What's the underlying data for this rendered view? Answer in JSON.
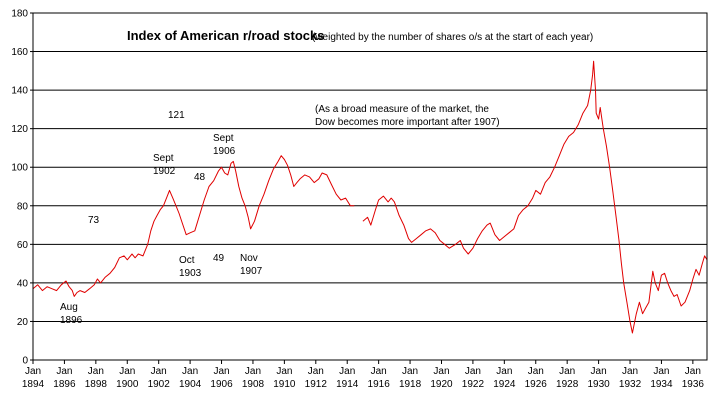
{
  "chart_data": {
    "type": "line",
    "title": "Index of American r/road stocks",
    "subtitle": "(weighted by the number of shares o/s at the start of each year)",
    "xlabel": "",
    "ylabel": "",
    "xlim": [
      1894.0,
      1936.9
    ],
    "ylim": [
      0,
      180
    ],
    "y_ticks": [
      0,
      20,
      40,
      60,
      80,
      100,
      120,
      140,
      160,
      180
    ],
    "x_ticks": [
      {
        "year": 1894,
        "label": [
          "Jan",
          "1894"
        ]
      },
      {
        "year": 1896,
        "label": [
          "Jan",
          "1896"
        ]
      },
      {
        "year": 1898,
        "label": [
          "Jan",
          "1898"
        ]
      },
      {
        "year": 1900,
        "label": [
          "Jan",
          "1900"
        ]
      },
      {
        "year": 1902,
        "label": [
          "Jan",
          "1902"
        ]
      },
      {
        "year": 1904,
        "label": [
          "Jan",
          "1904"
        ]
      },
      {
        "year": 1906,
        "label": [
          "Jan",
          "1906"
        ]
      },
      {
        "year": 1908,
        "label": [
          "Jan",
          "1908"
        ]
      },
      {
        "year": 1910,
        "label": [
          "Jan",
          "1910"
        ]
      },
      {
        "year": 1912,
        "label": [
          "Jan",
          "1912"
        ]
      },
      {
        "year": 1914,
        "label": [
          "Jan",
          "1914"
        ]
      },
      {
        "year": 1916,
        "label": [
          "Jan",
          "1916"
        ]
      },
      {
        "year": 1918,
        "label": [
          "Jan",
          "1918"
        ]
      },
      {
        "year": 1920,
        "label": [
          "Jan",
          "1920"
        ]
      },
      {
        "year": 1922,
        "label": [
          "Jan",
          "1922"
        ]
      },
      {
        "year": 1924,
        "label": [
          "Jan",
          "1924"
        ]
      },
      {
        "year": 1926,
        "label": [
          "Jan",
          "1926"
        ]
      },
      {
        "year": 1928,
        "label": [
          "Jan",
          "1928"
        ]
      },
      {
        "year": 1930,
        "label": [
          "Jan",
          "1930"
        ]
      },
      {
        "year": 1932,
        "label": [
          "Jan",
          "1932"
        ]
      },
      {
        "year": 1934,
        "label": [
          "Jan",
          "1934"
        ]
      },
      {
        "year": 1936,
        "label": [
          "Jan",
          "1936"
        ]
      }
    ],
    "grid": "horizontal",
    "series": [
      {
        "color": "#e00000",
        "segments": [
          [
            [
              1894.0,
              37
            ],
            [
              1894.3,
              39
            ],
            [
              1894.6,
              36
            ],
            [
              1894.9,
              38
            ],
            [
              1895.2,
              37
            ],
            [
              1895.5,
              36
            ],
            [
              1895.8,
              39
            ],
            [
              1896.1,
              41
            ],
            [
              1896.3,
              38
            ],
            [
              1896.5,
              36
            ],
            [
              1896.62,
              33
            ],
            [
              1896.8,
              35
            ],
            [
              1897.0,
              36
            ],
            [
              1897.3,
              35
            ],
            [
              1897.6,
              37
            ],
            [
              1897.9,
              39
            ],
            [
              1898.1,
              42
            ],
            [
              1898.3,
              40
            ],
            [
              1898.6,
              43
            ],
            [
              1898.9,
              45
            ],
            [
              1899.2,
              48
            ],
            [
              1899.5,
              53
            ],
            [
              1899.8,
              54
            ],
            [
              1900.0,
              52
            ],
            [
              1900.3,
              55
            ],
            [
              1900.5,
              53
            ],
            [
              1900.7,
              55
            ],
            [
              1901.0,
              54
            ],
            [
              1901.3,
              60
            ],
            [
              1901.5,
              67
            ],
            [
              1901.7,
              72
            ],
            [
              1901.9,
              75
            ],
            [
              1902.1,
              78
            ],
            [
              1902.3,
              80
            ],
            [
              1902.5,
              84
            ],
            [
              1902.69,
              88
            ],
            [
              1902.9,
              84
            ],
            [
              1903.1,
              80
            ],
            [
              1903.3,
              76
            ],
            [
              1903.5,
              71
            ],
            [
              1903.75,
              65
            ],
            [
              1904.0,
              66
            ],
            [
              1904.3,
              67
            ],
            [
              1904.6,
              75
            ],
            [
              1904.9,
              83
            ],
            [
              1905.2,
              90
            ],
            [
              1905.5,
              93
            ],
            [
              1905.8,
              98
            ],
            [
              1906.0,
              100
            ],
            [
              1906.2,
              97
            ],
            [
              1906.4,
              96
            ],
            [
              1906.6,
              102
            ],
            [
              1906.75,
              103
            ],
            [
              1906.9,
              98
            ],
            [
              1907.1,
              90
            ],
            [
              1907.3,
              84
            ],
            [
              1907.5,
              80
            ],
            [
              1907.7,
              74
            ],
            [
              1907.85,
              68
            ],
            [
              1908.1,
              72
            ],
            [
              1908.4,
              80
            ],
            [
              1908.7,
              86
            ],
            [
              1909.0,
              93
            ],
            [
              1909.3,
              99
            ],
            [
              1909.6,
              103
            ],
            [
              1909.8,
              106
            ],
            [
              1910.0,
              104
            ],
            [
              1910.2,
              101
            ],
            [
              1910.4,
              96
            ],
            [
              1910.6,
              90
            ],
            [
              1910.8,
              92
            ],
            [
              1911.0,
              94
            ],
            [
              1911.3,
              96
            ],
            [
              1911.6,
              95
            ],
            [
              1911.9,
              92
            ],
            [
              1912.2,
              94
            ],
            [
              1912.4,
              97
            ],
            [
              1912.7,
              96
            ],
            [
              1913.0,
              91
            ],
            [
              1913.3,
              86
            ],
            [
              1913.6,
              83
            ],
            [
              1913.9,
              84
            ],
            [
              1914.2,
              80
            ],
            [
              1914.45,
              80
            ]
          ],
          [
            [
              1915.0,
              72
            ],
            [
              1915.3,
              74
            ],
            [
              1915.5,
              70
            ],
            [
              1915.8,
              78
            ],
            [
              1916.0,
              83
            ],
            [
              1916.3,
              85
            ],
            [
              1916.6,
              82
            ],
            [
              1916.8,
              84
            ],
            [
              1917.0,
              82
            ],
            [
              1917.3,
              75
            ],
            [
              1917.6,
              70
            ],
            [
              1917.9,
              63
            ],
            [
              1918.1,
              61
            ],
            [
              1918.4,
              63
            ],
            [
              1918.7,
              65
            ],
            [
              1919.0,
              67
            ],
            [
              1919.3,
              68
            ],
            [
              1919.6,
              66
            ],
            [
              1919.9,
              62
            ],
            [
              1920.2,
              60
            ],
            [
              1920.5,
              58
            ],
            [
              1920.9,
              60
            ],
            [
              1921.2,
              62
            ],
            [
              1921.4,
              58
            ],
            [
              1921.7,
              55
            ],
            [
              1922.0,
              58
            ],
            [
              1922.3,
              63
            ],
            [
              1922.6,
              67
            ],
            [
              1922.9,
              70
            ],
            [
              1923.1,
              71
            ],
            [
              1923.4,
              65
            ],
            [
              1923.7,
              62
            ],
            [
              1924.0,
              64
            ],
            [
              1924.3,
              66
            ],
            [
              1924.6,
              68
            ],
            [
              1924.9,
              75
            ],
            [
              1925.2,
              78
            ],
            [
              1925.5,
              80
            ],
            [
              1925.8,
              84
            ],
            [
              1926.0,
              88
            ],
            [
              1926.3,
              86
            ],
            [
              1926.6,
              92
            ],
            [
              1926.9,
              95
            ],
            [
              1927.2,
              100
            ],
            [
              1927.5,
              106
            ],
            [
              1927.8,
              112
            ],
            [
              1928.1,
              116
            ],
            [
              1928.4,
              118
            ],
            [
              1928.7,
              122
            ],
            [
              1929.0,
              128
            ],
            [
              1929.3,
              132
            ],
            [
              1929.5,
              140
            ],
            [
              1929.62,
              148
            ],
            [
              1929.68,
              155
            ],
            [
              1929.8,
              140
            ],
            [
              1929.85,
              128
            ],
            [
              1930.0,
              125
            ],
            [
              1930.1,
              131
            ],
            [
              1930.3,
              120
            ],
            [
              1930.5,
              111
            ],
            [
              1930.7,
              100
            ],
            [
              1930.9,
              88
            ],
            [
              1931.1,
              75
            ],
            [
              1931.3,
              62
            ],
            [
              1931.45,
              50
            ],
            [
              1931.6,
              40
            ],
            [
              1931.8,
              30
            ],
            [
              1932.0,
              20
            ],
            [
              1932.15,
              14
            ],
            [
              1932.4,
              24
            ],
            [
              1932.6,
              30
            ],
            [
              1932.8,
              24
            ],
            [
              1933.0,
              27
            ],
            [
              1933.2,
              30
            ],
            [
              1933.45,
              46
            ],
            [
              1933.6,
              40
            ],
            [
              1933.8,
              36
            ],
            [
              1934.0,
              44
            ],
            [
              1934.2,
              45
            ],
            [
              1934.4,
              40
            ],
            [
              1934.6,
              36
            ],
            [
              1934.8,
              33
            ],
            [
              1935.0,
              34
            ],
            [
              1935.25,
              28
            ],
            [
              1935.5,
              30
            ],
            [
              1935.8,
              36
            ],
            [
              1936.0,
              42
            ],
            [
              1936.2,
              47
            ],
            [
              1936.4,
              44
            ],
            [
              1936.6,
              50
            ],
            [
              1936.75,
              54
            ],
            [
              1936.9,
              52
            ]
          ]
        ]
      }
    ],
    "annotations": [
      {
        "text": [
          "Aug",
          "1896"
        ],
        "x": 1896.62,
        "y": 33
      },
      {
        "text": [
          "73"
        ],
        "x": 1897.9,
        "y": 73
      },
      {
        "text": [
          "Sept",
          "1902"
        ],
        "x": 1902.69,
        "y": 88
      },
      {
        "text": [
          "121"
        ],
        "x": 1903.5,
        "y": 121
      },
      {
        "text": [
          "Oct",
          "1903"
        ],
        "x": 1903.75,
        "y": 65
      },
      {
        "text": [
          "48"
        ],
        "x": 1905.0,
        "y": 48
      },
      {
        "text": [
          "Sept",
          "1906"
        ],
        "x": 1906.75,
        "y": 103
      },
      {
        "text": [
          "49"
        ],
        "x": 1906.2,
        "y": 49
      },
      {
        "text": [
          "Nov",
          "1907"
        ],
        "x": 1907.85,
        "y": 68
      },
      {
        "text": [
          "(As a broad measure of the market, the",
          "Dow becomes more important after 1907)"
        ],
        "x": 1919.0,
        "y": 131
      }
    ]
  }
}
